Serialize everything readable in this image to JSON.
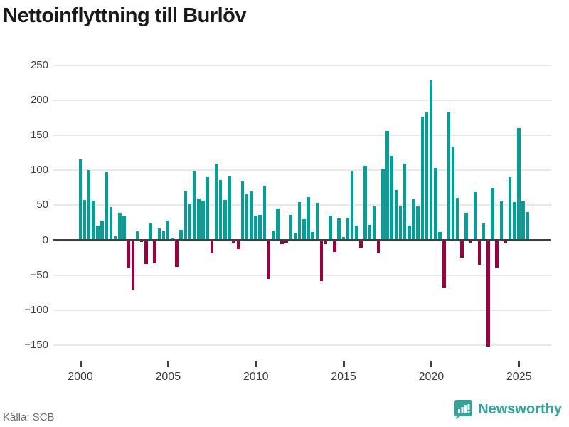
{
  "title": "Nettoinflyttning till Burlöv",
  "source": "Källa: SCB",
  "branding": {
    "logo_text": "Newsworthy",
    "logo_icon": "bar-chart-speech-bubble-icon",
    "logo_color": "#35a39b"
  },
  "colors": {
    "positive_bar": "#00a099",
    "negative_bar": "#990042",
    "gridline": "#e8e8e8",
    "zero_line": "#3f3f3f",
    "title_text": "#1a1a1a",
    "axis_text": "#3d3d3d",
    "source_text": "#6d7078"
  },
  "chart_data": {
    "type": "bar",
    "title": "Nettoinflyttning till Burlöv",
    "frequency": "quarterly",
    "x_tick_labels": [
      "2000",
      "2005",
      "2010",
      "2015",
      "2020",
      "2025"
    ],
    "y_tick_labels": [
      "250",
      "200",
      "150",
      "100",
      "50",
      "0",
      "−50",
      "−100",
      "−150"
    ],
    "y_axis": {
      "min": -150,
      "max": 250,
      "step": 50
    },
    "grid": true,
    "legend": false,
    "series": [
      {
        "name": "Nettoinflyttning",
        "data_by_year": [
          {
            "year": 2000,
            "values": [
              116,
              58,
              100,
              57
            ]
          },
          {
            "year": 2001,
            "values": [
              21,
              28,
              97,
              47
            ]
          },
          {
            "year": 2002,
            "values": [
              6,
              39,
              34,
              -39
            ]
          },
          {
            "year": 2003,
            "values": [
              -72,
              13,
              -3,
              -34
            ]
          },
          {
            "year": 2004,
            "values": [
              24,
              -33,
              17,
              13
            ]
          },
          {
            "year": 2005,
            "values": [
              28,
              3,
              -38,
              15
            ]
          },
          {
            "year": 2006,
            "values": [
              71,
              53,
              99,
              60
            ]
          },
          {
            "year": 2007,
            "values": [
              57,
              90,
              -18,
              109
            ]
          },
          {
            "year": 2008,
            "values": [
              86,
              58,
              91,
              -5
            ]
          },
          {
            "year": 2009,
            "values": [
              -13,
              84,
              66,
              70
            ]
          },
          {
            "year": 2010,
            "values": [
              35,
              36,
              78,
              -55
            ]
          },
          {
            "year": 2011,
            "values": [
              14,
              45,
              -6,
              -4
            ]
          },
          {
            "year": 2012,
            "values": [
              36,
              10,
              55,
              30
            ]
          },
          {
            "year": 2013,
            "values": [
              62,
              12,
              54,
              -58
            ]
          },
          {
            "year": 2014,
            "values": [
              -6,
              35,
              -17,
              31
            ]
          },
          {
            "year": 2015,
            "values": [
              5,
              32,
              99,
              21
            ]
          },
          {
            "year": 2016,
            "values": [
              -11,
              106,
              22,
              48
            ]
          },
          {
            "year": 2017,
            "values": [
              -18,
              101,
              156,
              121
            ]
          },
          {
            "year": 2018,
            "values": [
              72,
              48,
              110,
              21
            ]
          },
          {
            "year": 2019,
            "values": [
              59,
              48,
              177,
              183
            ]
          },
          {
            "year": 2020,
            "values": [
              229,
              103,
              12,
              -68
            ]
          },
          {
            "year": 2021,
            "values": [
              183,
              133,
              61,
              -25
            ]
          },
          {
            "year": 2022,
            "values": [
              39,
              -4,
              69,
              -35
            ]
          },
          {
            "year": 2023,
            "values": [
              24,
              -152,
              75,
              -39
            ]
          },
          {
            "year": 2024,
            "values": [
              56,
              -5,
              90,
              55
            ]
          },
          {
            "year": 2025,
            "values": [
              160,
              56,
              40
            ]
          }
        ]
      }
    ]
  }
}
